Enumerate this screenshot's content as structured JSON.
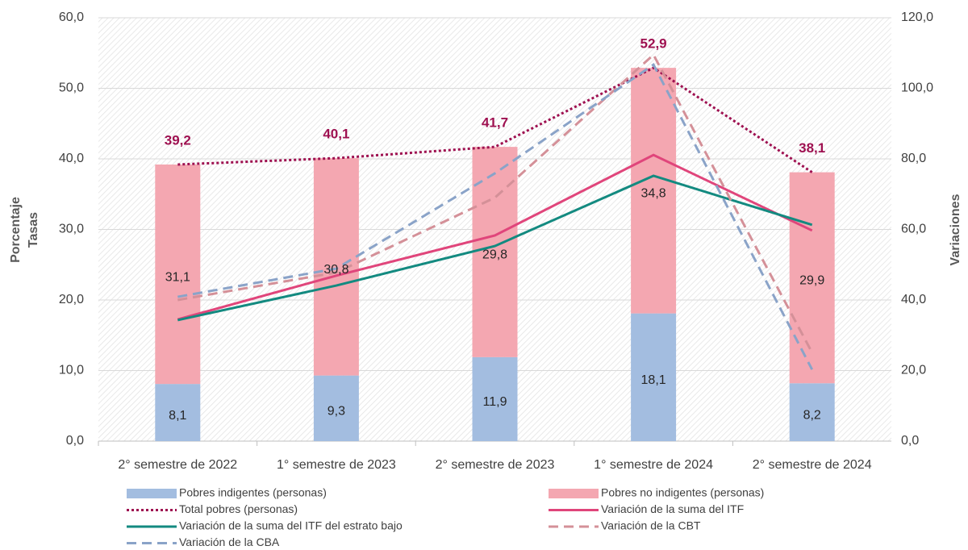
{
  "chart_data": {
    "type": "bar",
    "categories": [
      "2° semestre de 2022",
      "1° semestre de 2023",
      "2° semestre de 2023",
      "1° semestre de 2024",
      "2° semestre de 2024"
    ],
    "ylabel": [
      "Porcentaje",
      "Tasas"
    ],
    "y2label": "Variaciones",
    "ylim": [
      0,
      60
    ],
    "yticks": [
      {
        "value": 0,
        "label": "0,0"
      },
      {
        "value": 10,
        "label": "10,0"
      },
      {
        "value": 20,
        "label": "20,0"
      },
      {
        "value": 30,
        "label": "30,0"
      },
      {
        "value": 40,
        "label": "40,0"
      },
      {
        "value": 50,
        "label": "50,0"
      },
      {
        "value": 60,
        "label": "60,0"
      }
    ],
    "y2lim": [
      0,
      120
    ],
    "y2ticks": [
      {
        "value": 0,
        "label": "0,0"
      },
      {
        "value": 20,
        "label": "20,0"
      },
      {
        "value": 40,
        "label": "40,0"
      },
      {
        "value": 60,
        "label": "60,0"
      },
      {
        "value": 80,
        "label": "80,0"
      },
      {
        "value": 100,
        "label": "100,0"
      },
      {
        "value": 120,
        "label": "120,0"
      }
    ],
    "grid": true,
    "series": [
      {
        "name": "Pobres indigentes (personas)",
        "type": "bar",
        "color": "#a3bde0",
        "values": [
          8.1,
          9.3,
          11.9,
          18.1,
          8.2
        ],
        "value_labels": [
          "8,1",
          "9,3",
          "11,9",
          "18,1",
          "8,2"
        ]
      },
      {
        "name": "Pobres no indigentes (personas)",
        "type": "bar",
        "color": "#f4a7b1",
        "values": [
          31.1,
          30.8,
          29.8,
          34.8,
          29.9
        ],
        "value_labels": [
          "31,1",
          "30,8",
          "29,8",
          "34,8",
          "29,9"
        ]
      },
      {
        "name": "Total pobres (personas)",
        "type": "line",
        "dash": "dot",
        "color": "#9e1050",
        "values": [
          39.2,
          40.1,
          41.7,
          52.9,
          38.1
        ],
        "value_labels": [
          "39,2",
          "40,1",
          "41,7",
          "52,9",
          "38,1"
        ]
      },
      {
        "name": "Variación de la suma del ITF",
        "type": "line",
        "axis": "y2",
        "color": "#e0457b",
        "values": [
          34.5,
          46.9,
          58.3,
          81.1,
          59.7
        ]
      },
      {
        "name": "Variación de la suma del ITF del estrato bajo",
        "type": "line",
        "axis": "y2",
        "color": "#138a80",
        "values": [
          34.3,
          44.1,
          55.3,
          75.2,
          61.3
        ]
      },
      {
        "name": "Variación de la CBT",
        "type": "line",
        "axis": "y2",
        "dash": "dash",
        "color": "#d49098",
        "values": [
          40.0,
          47.8,
          69.0,
          109.5,
          25.1
        ]
      },
      {
        "name": "Variación de la CBA",
        "type": "line",
        "axis": "y2",
        "dash": "dash",
        "color": "#8aa3c8",
        "values": [
          40.9,
          48.9,
          75.9,
          106.7,
          20.3
        ]
      }
    ]
  }
}
